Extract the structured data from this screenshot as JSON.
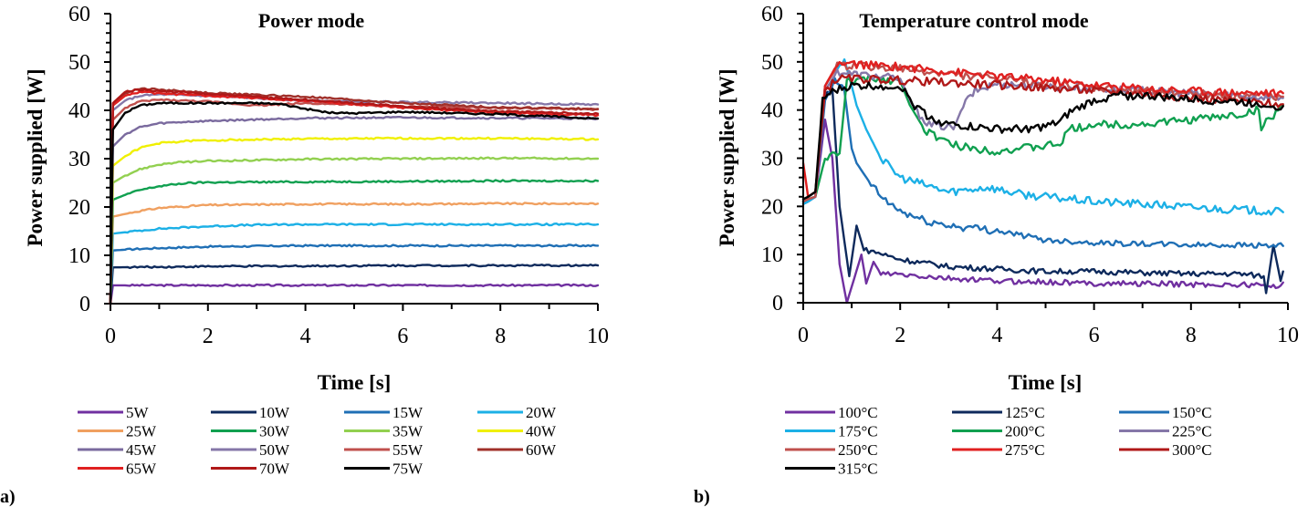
{
  "chart_data": [
    {
      "panel_label": "a)",
      "type": "line",
      "title": "Power mode",
      "xlabel": "Time [s]",
      "ylabel": "Power supplied [W]",
      "xlim": [
        0,
        10
      ],
      "ylim": [
        0,
        60
      ],
      "xticks": [
        "0",
        "2",
        "4",
        "6",
        "8",
        "10"
      ],
      "yticks": [
        "0",
        "10",
        "20",
        "30",
        "40",
        "50",
        "60"
      ],
      "grid": false,
      "legend_position": "bottom",
      "legend_columns": 4,
      "series": [
        {
          "name": "5W",
          "color": "#7030A0",
          "x": [
            0,
            0.05,
            1,
            2,
            4,
            6,
            8,
            10
          ],
          "y": [
            0,
            3.8,
            3.8,
            3.8,
            3.8,
            3.8,
            3.8,
            3.8
          ]
        },
        {
          "name": "10W",
          "color": "#0E2A5C",
          "x": [
            0,
            0.05,
            1,
            2,
            4,
            6,
            8,
            10
          ],
          "y": [
            0,
            7.5,
            7.6,
            7.7,
            7.8,
            7.9,
            7.9,
            7.9
          ]
        },
        {
          "name": "15W",
          "color": "#1F6FB5",
          "x": [
            0,
            0.05,
            0.5,
            1,
            2,
            4,
            6,
            8,
            10
          ],
          "y": [
            0,
            11,
            11.3,
            11.5,
            11.8,
            12,
            12,
            12,
            12
          ]
        },
        {
          "name": "20W",
          "color": "#1CB0E6",
          "x": [
            0,
            0.05,
            0.5,
            1,
            2,
            3,
            4,
            6,
            8,
            10
          ],
          "y": [
            0,
            14.5,
            15,
            15.5,
            16,
            16.3,
            16.4,
            16.4,
            16.4,
            16.4
          ]
        },
        {
          "name": "25W",
          "color": "#F0A060",
          "x": [
            0,
            0.05,
            0.5,
            1,
            2,
            4,
            6,
            8,
            10
          ],
          "y": [
            0,
            18,
            19,
            19.8,
            20.4,
            20.6,
            20.6,
            20.7,
            20.7
          ]
        },
        {
          "name": "30W",
          "color": "#10A050",
          "x": [
            0,
            0.05,
            0.3,
            0.6,
            1,
            1.5,
            2,
            4,
            6,
            8,
            10
          ],
          "y": [
            0,
            21.5,
            22.5,
            23.5,
            24.3,
            24.9,
            25.1,
            25.2,
            25.3,
            25.4,
            25.4
          ]
        },
        {
          "name": "35W",
          "color": "#92D050",
          "x": [
            0,
            0.05,
            0.3,
            0.6,
            1,
            1.5,
            2,
            4,
            6,
            8,
            10
          ],
          "y": [
            0,
            25,
            26.5,
            27.8,
            28.8,
            29.3,
            29.5,
            29.9,
            30,
            30.1,
            30
          ]
        },
        {
          "name": "40W",
          "color": "#F0F000",
          "x": [
            0,
            0.05,
            0.3,
            0.6,
            1,
            1.5,
            2,
            4,
            6,
            8,
            10
          ],
          "y": [
            0,
            28.5,
            30.5,
            32.2,
            33.2,
            33.6,
            33.8,
            34.1,
            34.2,
            34.2,
            34
          ]
        },
        {
          "name": "45W",
          "color": "#7A6A9E",
          "x": [
            0,
            0.05,
            0.3,
            0.6,
            1,
            1.5,
            2,
            4,
            6,
            8,
            10
          ],
          "y": [
            0,
            32.5,
            35,
            36.5,
            37.3,
            37.6,
            37.8,
            38.4,
            38.5,
            38.4,
            38.3
          ]
        },
        {
          "name": "50W",
          "color": "#8577A8",
          "x": [
            0,
            0.05,
            0.3,
            0.6,
            1,
            2,
            4,
            5,
            6,
            8,
            10
          ],
          "y": [
            0,
            40,
            42,
            43,
            43.3,
            43,
            42,
            41.8,
            41.7,
            41.5,
            41.2
          ]
        },
        {
          "name": "55W",
          "color": "#C0504D",
          "x": [
            0,
            0.05,
            0.3,
            0.6,
            1,
            2,
            3,
            4,
            6,
            8,
            10
          ],
          "y": [
            0,
            38,
            40.5,
            41.8,
            42.2,
            41.8,
            41,
            41.5,
            40.8,
            40.5,
            40.2
          ]
        },
        {
          "name": "60W",
          "color": "#A0302A",
          "x": [
            0,
            0.05,
            0.3,
            0.6,
            1,
            2,
            4,
            6,
            8,
            10
          ],
          "y": [
            0,
            41,
            43.5,
            44.5,
            44.3,
            43.6,
            42.8,
            41.5,
            40.6,
            40.3
          ]
        },
        {
          "name": "65W",
          "color": "#E02020",
          "x": [
            0,
            0.05,
            0.3,
            0.6,
            1,
            2,
            4,
            6,
            8,
            10
          ],
          "y": [
            0,
            41,
            43,
            43.8,
            43.5,
            43,
            42,
            40.5,
            39.5,
            39
          ]
        },
        {
          "name": "70W",
          "color": "#B01818",
          "x": [
            0,
            0.05,
            0.3,
            0.6,
            1,
            2,
            4,
            6,
            8,
            10
          ],
          "y": [
            0,
            41.5,
            43.8,
            44.3,
            44,
            43.4,
            42.2,
            40.8,
            39.8,
            39.3
          ]
        },
        {
          "name": "75W",
          "color": "#000000",
          "x": [
            0,
            0.05,
            0.3,
            0.6,
            1,
            2,
            3,
            3.5,
            4,
            4.5,
            5,
            6,
            8,
            10
          ],
          "y": [
            0,
            36,
            39.5,
            41,
            41.5,
            41.5,
            41.5,
            41.3,
            40.3,
            39.5,
            39.4,
            39.7,
            39.2,
            38.3
          ]
        }
      ]
    },
    {
      "panel_label": "b)",
      "type": "line",
      "title": "Temperature control mode",
      "xlabel": "Time [s]",
      "ylabel": "Power supplied [W]",
      "xlim": [
        0,
        10
      ],
      "ylim": [
        0,
        60
      ],
      "xticks": [
        "0",
        "2",
        "4",
        "6",
        "8",
        "10"
      ],
      "yticks": [
        "0",
        "10",
        "20",
        "30",
        "40",
        "50",
        "60"
      ],
      "grid": false,
      "legend_position": "bottom",
      "legend_columns": 3,
      "series": [
        {
          "name": "100°C",
          "color": "#7030A0",
          "x": [
            0,
            0.1,
            0.25,
            0.45,
            0.6,
            0.75,
            0.9,
            1.05,
            1.2,
            1.3,
            1.45,
            1.6,
            2,
            3,
            4,
            5,
            6,
            7,
            8,
            9,
            9.5,
            9.7,
            9.9
          ],
          "y": [
            20.5,
            21,
            22,
            38,
            30,
            8,
            0,
            5,
            10,
            4,
            8.5,
            6,
            5.8,
            5,
            4.5,
            4.3,
            4,
            4,
            3.8,
            3.7,
            3.7,
            3.2,
            4.2
          ]
        },
        {
          "name": "125°C",
          "color": "#0E2A5C",
          "x": [
            0,
            0.1,
            0.25,
            0.45,
            0.6,
            0.75,
            0.95,
            1.1,
            1.25,
            1.5,
            2,
            3,
            4,
            5,
            6,
            7,
            8,
            9,
            9.5,
            9.55,
            9.7,
            9.85,
            9.9
          ],
          "y": [
            21,
            21.5,
            22,
            43,
            44.5,
            20,
            5.5,
            16,
            11,
            10.5,
            9,
            7.5,
            7,
            6.5,
            6.5,
            6.2,
            6,
            6,
            5.5,
            2,
            12,
            4.5,
            6.5
          ]
        },
        {
          "name": "150°C",
          "color": "#1F6FB5",
          "x": [
            0,
            0.1,
            0.25,
            0.45,
            0.65,
            0.85,
            1.0,
            1.1,
            1.3,
            1.6,
            2,
            2.5,
            3,
            4,
            4.5,
            5,
            6,
            7,
            8,
            9,
            9.9
          ],
          "y": [
            20.5,
            21,
            22,
            42,
            46,
            44,
            32,
            29,
            26,
            22,
            19,
            17,
            16,
            15,
            14,
            13,
            12.5,
            12.2,
            12,
            12,
            11.8
          ]
        },
        {
          "name": "175°C",
          "color": "#1CB0E6",
          "x": [
            0,
            0.1,
            0.25,
            0.45,
            0.7,
            0.85,
            1.0,
            1.1,
            1.3,
            1.6,
            2,
            2.5,
            3,
            3.8,
            4.5,
            5,
            6,
            7,
            8,
            9,
            9.9
          ],
          "y": [
            20.5,
            21,
            22,
            45,
            49,
            50.5,
            45,
            41,
            36,
            30,
            26,
            24.5,
            23,
            24,
            22.5,
            22,
            21,
            20.5,
            19.8,
            19.3,
            18.8
          ]
        },
        {
          "name": "200°C",
          "color": "#10A050",
          "x": [
            0,
            0.1,
            0.25,
            0.45,
            0.6,
            0.75,
            0.9,
            1.5,
            2.0,
            2.2,
            2.5,
            3,
            3.5,
            4,
            4.5,
            5,
            5.3,
            5.5,
            6,
            7,
            8,
            9,
            9.4,
            9.45,
            9.9
          ],
          "y": [
            21,
            21.5,
            22,
            30,
            30.5,
            31,
            46,
            46.5,
            46,
            41,
            36,
            33,
            32,
            31.5,
            32,
            32.5,
            33,
            36,
            37,
            37,
            38,
            39,
            40,
            36.5,
            41
          ]
        },
        {
          "name": "225°C",
          "color": "#8577A8",
          "x": [
            0,
            0.1,
            0.25,
            0.45,
            0.7,
            1.0,
            1.5,
            2.0,
            2.3,
            2.6,
            3.0,
            3.1,
            3.3,
            3.55,
            4,
            5,
            6,
            7,
            8,
            9,
            9.9
          ],
          "y": [
            21,
            21.5,
            22,
            44,
            48,
            47.5,
            47,
            46.5,
            40,
            37,
            36.5,
            36,
            41,
            44,
            45.5,
            45,
            44.5,
            44,
            43.5,
            43,
            42.5
          ]
        },
        {
          "name": "250°C",
          "color": "#C0504D",
          "x": [
            0,
            0.1,
            0.25,
            0.45,
            0.7,
            1,
            2,
            3,
            4,
            5,
            6,
            7,
            8,
            9,
            9.9
          ],
          "y": [
            21,
            21.5,
            22,
            45,
            49,
            49.3,
            48.5,
            47.5,
            46.5,
            45.5,
            44.5,
            44,
            43.5,
            43,
            42.8
          ]
        },
        {
          "name": "275°C",
          "color": "#E02020",
          "x": [
            0,
            0.1,
            0.25,
            0.45,
            0.7,
            1,
            2,
            3,
            4,
            5,
            6,
            7,
            8,
            9,
            9.9
          ],
          "y": [
            29,
            22,
            23,
            45,
            49.5,
            49.5,
            49,
            48,
            47,
            46.2,
            45.2,
            44.5,
            44,
            43.6,
            43.5
          ]
        },
        {
          "name": "300°C",
          "color": "#B01818",
          "x": [
            0,
            0.1,
            0.25,
            0.45,
            0.7,
            1,
            2,
            3,
            4,
            5,
            6,
            7,
            8,
            9,
            9.9
          ],
          "y": [
            21.5,
            22,
            23,
            44,
            46.5,
            46.5,
            46.2,
            45.7,
            45.2,
            44.6,
            44,
            43.4,
            42.6,
            41.8,
            41.2
          ]
        },
        {
          "name": "315°C",
          "color": "#000000",
          "x": [
            0,
            0.1,
            0.25,
            0.4,
            0.55,
            0.8,
            1.0,
            1.5,
            2.0,
            2.3,
            2.6,
            3.0,
            3.5,
            4,
            4.5,
            5,
            5.3,
            5.5,
            6,
            6.5,
            7,
            8,
            9,
            9.9
          ],
          "y": [
            21.5,
            22,
            23,
            42,
            43.5,
            44.5,
            45,
            45,
            45,
            41,
            38.5,
            37,
            36.5,
            36,
            36,
            36.5,
            37.5,
            39.5,
            42,
            43,
            43,
            42.2,
            41.7,
            40.8
          ]
        }
      ]
    }
  ]
}
